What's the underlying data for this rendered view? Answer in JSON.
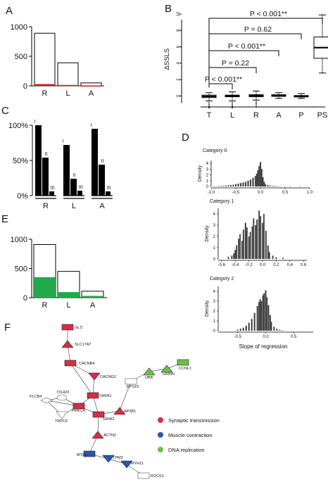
{
  "panels": {
    "A": {
      "label": "A",
      "chart_data": {
        "type": "bar",
        "categories": [
          "R",
          "L",
          "A"
        ],
        "series": [
          {
            "values": [
              890,
              390,
              50
            ]
          },
          {
            "values": [
              30,
              15,
              5
            ]
          }
        ],
        "ylim": [
          0,
          1000
        ],
        "yticks": [
          "0",
          "500",
          "1000"
        ],
        "colors": {
          "outline": "#000000",
          "fill": "#ffffff",
          "accent": "#cc2222"
        }
      }
    },
    "B": {
      "label": "B",
      "chart_data": {
        "type": "box",
        "categories": [
          "T",
          "L",
          "R",
          "A",
          "P",
          "PS"
        ],
        "ylabel": "ΔSSLS",
        "ylim": [
          -1,
          10
        ],
        "yticks": [
          "0",
          "2",
          "4",
          "6",
          "8",
          "10"
        ],
        "boxes": [
          {
            "name": "T",
            "q1": -0.2,
            "median": -0.05,
            "q3": 0.1,
            "whisker_low": -0.6,
            "whisker_high": 0.4
          },
          {
            "name": "L",
            "q1": -0.1,
            "median": 0.0,
            "q3": 0.1,
            "whisker_low": -0.6,
            "whisker_high": 0.5
          },
          {
            "name": "R",
            "q1": -0.1,
            "median": 0.05,
            "q3": 0.15,
            "whisker_low": -0.5,
            "whisker_high": 0.6
          },
          {
            "name": "A",
            "q1": -0.05,
            "median": 0.05,
            "q3": 0.15,
            "whisker_low": -0.3,
            "whisker_high": 0.4
          },
          {
            "name": "P",
            "q1": -0.1,
            "median": -0.05,
            "q3": 0.05,
            "whisker_low": -0.3,
            "whisker_high": 0.3
          },
          {
            "name": "PS",
            "q1": 4.6,
            "median": 5.9,
            "q3": 7.2,
            "whisker_low": 2.8,
            "whisker_high": 9.9
          }
        ],
        "annotations": [
          {
            "from": "T",
            "to": "PS",
            "text": "P < 0.001**"
          },
          {
            "from": "T",
            "to": "P",
            "text": "P = 0.62"
          },
          {
            "from": "T",
            "to": "A",
            "text": "P < 0.001**"
          },
          {
            "from": "T",
            "to": "R",
            "text": "P = 0.22"
          },
          {
            "from": "T",
            "to": "L",
            "text": "P < 0.001**"
          }
        ]
      }
    },
    "C": {
      "label": "C",
      "chart_data": {
        "type": "bar",
        "categories": [
          "R",
          "L",
          "A"
        ],
        "series": [
          {
            "name": "I",
            "values": [
              100,
              72,
              95
            ]
          },
          {
            "name": "II",
            "values": [
              54,
              24,
              44
            ]
          },
          {
            "name": "III",
            "values": [
              6,
              7,
              6
            ]
          }
        ],
        "ylim": [
          0,
          100
        ],
        "yticks": [
          "0%",
          "50%",
          "100%"
        ]
      }
    },
    "D": {
      "label": "D",
      "xlabel": "Slope of regression",
      "ylabel": "Density",
      "chart_data": [
        {
          "type": "histogram",
          "title": "Category 0",
          "x_ticks": [
            "-1.0",
            "-0.5",
            "0.0",
            "0.5",
            "1.0"
          ],
          "y_ticks": [
            "0",
            "1",
            "2",
            "3",
            "4"
          ],
          "xlim": [
            -1.0,
            1.0
          ],
          "ylim": [
            0,
            4.5
          ],
          "centers": [
            -0.95,
            -0.9,
            -0.85,
            -0.8,
            -0.75,
            -0.7,
            -0.65,
            -0.6,
            -0.55,
            -0.5,
            -0.45,
            -0.4,
            -0.35,
            -0.3,
            -0.25,
            -0.2,
            -0.15,
            -0.1,
            -0.075,
            -0.05,
            -0.025,
            0.0,
            0.025,
            0.05,
            0.075,
            0.1,
            0.15,
            0.2,
            0.25,
            0.3,
            0.35,
            0.4,
            0.5,
            0.6,
            0.8
          ],
          "values": [
            0.05,
            0.05,
            0.08,
            0.1,
            0.12,
            0.15,
            0.2,
            0.25,
            0.3,
            0.4,
            0.5,
            0.6,
            0.7,
            0.8,
            1.0,
            1.2,
            1.5,
            1.8,
            2.2,
            2.8,
            3.5,
            4.2,
            3.0,
            1.6,
            0.8,
            0.4,
            0.25,
            0.15,
            0.1,
            0.08,
            0.06,
            0.05,
            0.04,
            0.03,
            0.02
          ]
        },
        {
          "type": "histogram",
          "title": "Category 1",
          "x_ticks": [
            "-0.6",
            "-0.4",
            "-0.2",
            "0.0",
            "0.2",
            "0.4",
            "0.6"
          ],
          "y_ticks": [
            "0",
            "1",
            "2",
            "3",
            "4"
          ],
          "xlim": [
            -0.65,
            0.65
          ],
          "ylim": [
            0,
            4.5
          ],
          "centers": [
            -0.5,
            -0.45,
            -0.42,
            -0.4,
            -0.38,
            -0.35,
            -0.33,
            -0.3,
            -0.28,
            -0.25,
            -0.23,
            -0.2,
            -0.18,
            -0.15,
            -0.13,
            -0.1,
            -0.08,
            -0.05,
            -0.03,
            0.0,
            0.02,
            0.05,
            0.08,
            0.1,
            0.15,
            0.2,
            0.3
          ],
          "values": [
            0.2,
            0.3,
            0.5,
            0.8,
            1.2,
            1.8,
            2.2,
            1.6,
            2.6,
            3.2,
            2.8,
            2.0,
            2.4,
            2.9,
            3.6,
            3.0,
            3.5,
            4.3,
            3.8,
            3.2,
            4.0,
            2.5,
            1.2,
            0.6,
            0.3,
            0.15,
            0.1
          ]
        },
        {
          "type": "histogram",
          "title": "Category 2",
          "x_ticks": [
            "-0.5",
            "0.0",
            "0.5"
          ],
          "y_ticks": [
            "0",
            "1",
            "2",
            "3",
            "4"
          ],
          "xlim": [
            -0.85,
            0.85
          ],
          "ylim": [
            0,
            4.5
          ],
          "centers": [
            -0.5,
            -0.45,
            -0.4,
            -0.35,
            -0.3,
            -0.25,
            -0.2,
            -0.15,
            -0.12,
            -0.1,
            -0.08,
            -0.05,
            -0.03,
            0.0,
            0.02,
            0.05,
            0.08,
            0.1,
            0.15,
            0.2,
            0.25,
            0.3
          ],
          "values": [
            0.1,
            0.2,
            0.3,
            0.5,
            0.8,
            1.2,
            1.8,
            2.5,
            2.9,
            3.2,
            3.0,
            3.6,
            3.8,
            4.1,
            3.4,
            2.6,
            1.6,
            0.9,
            0.4,
            0.2,
            0.1,
            0.05
          ]
        }
      ]
    },
    "E": {
      "label": "E",
      "chart_data": {
        "type": "bar",
        "categories": [
          "R",
          "L",
          "A"
        ],
        "series": [
          {
            "values": [
              910,
              450,
              110
            ]
          },
          {
            "values": [
              350,
              95,
              30
            ]
          }
        ],
        "ylim": [
          0,
          1000
        ],
        "yticks": [
          "0",
          "500",
          "1000"
        ],
        "colors": {
          "outline": "#000000",
          "fill": "#ffffff",
          "accent": "#22a84a"
        }
      }
    },
    "F": {
      "label": "F",
      "legend": [
        {
          "label": "Synaptic transmission",
          "color": "#d32f45"
        },
        {
          "label": "Muscle contraction",
          "color": "#2b55b0"
        },
        {
          "label": "DNA replication",
          "color": "#6cbf4c"
        }
      ],
      "nodes": [
        {
          "id": "GLS",
          "label": "GLS",
          "category": "synaptic",
          "shape": "rect"
        },
        {
          "id": "SLC17A7",
          "label": "SLC17A7",
          "category": "synaptic",
          "shape": "tri-up"
        },
        {
          "id": "CACNB4",
          "label": "CACNB4",
          "category": "synaptic",
          "shape": "rect"
        },
        {
          "id": "CACNG2",
          "label": "CACNG2",
          "category": "synaptic",
          "shape": "tri-down"
        },
        {
          "id": "GRIA1",
          "label": "GRIA1",
          "category": "synaptic",
          "shape": "rect"
        },
        {
          "id": "GRIA2",
          "label": "GRIA2",
          "category": "synaptic",
          "shape": "rect"
        },
        {
          "id": "PRKCA",
          "label": "PRKCA",
          "category": "synaptic",
          "shape": "rect"
        },
        {
          "id": "AP2B1",
          "label": "AP2B1",
          "category": "synaptic",
          "shape": "tri-up"
        },
        {
          "id": "ACTN2",
          "label": "ACTN2",
          "category": "synaptic",
          "shape": "tri-up"
        },
        {
          "id": "731423",
          "label": "731423",
          "category": "none",
          "shape": "ellipse"
        },
        {
          "id": "PLCB4",
          "label": "PLCB4",
          "category": "none",
          "shape": "diamond"
        },
        {
          "id": "TRPC6",
          "label": "TRPC6",
          "category": "none",
          "shape": "tri-down"
        },
        {
          "id": "EPS15",
          "label": "EPS15",
          "category": "none",
          "shape": "rect"
        },
        {
          "id": "UBB",
          "label": "UBB",
          "category": "dna",
          "shape": "tri-up"
        },
        {
          "id": "GMNN",
          "label": "GMNN",
          "category": "dna",
          "shape": "tri-up"
        },
        {
          "id": "CCNL1",
          "label": "CCNL1",
          "category": "dna",
          "shape": "rect"
        },
        {
          "id": "MYL1",
          "label": "MYL1",
          "category": "muscle",
          "shape": "rect"
        },
        {
          "id": "TPM3",
          "label": "TPM3",
          "category": "muscle",
          "shape": "tri-down"
        },
        {
          "id": "MYH11",
          "label": "MYH11",
          "category": "muscle",
          "shape": "tri-down"
        },
        {
          "id": "ROCK1",
          "label": "ROCK1",
          "category": "none",
          "shape": "rect"
        }
      ],
      "edges": [
        [
          "GLS",
          "SLC17A7"
        ],
        [
          "SLC17A7",
          "CACNB4"
        ],
        [
          "CACNB4",
          "CACNG2"
        ],
        [
          "CACNG2",
          "GRIA1"
        ],
        [
          "GRIA1",
          "GRIA2"
        ],
        [
          "GRIA1",
          "PRKCA"
        ],
        [
          "PRKCA",
          "GRIA2"
        ],
        [
          "GRIA2",
          "AP2B1"
        ],
        [
          "AP2B1",
          "EPS15"
        ],
        [
          "EPS15",
          "UBB"
        ],
        [
          "UBB",
          "GMNN"
        ],
        [
          "GMNN",
          "CCNL1"
        ],
        [
          "GRIA2",
          "ACTN2"
        ],
        [
          "ACTN2",
          "MYL1"
        ],
        [
          "MYL1",
          "TPM3"
        ],
        [
          "TPM3",
          "MYH11"
        ],
        [
          "MYH11",
          "ROCK1"
        ],
        [
          "PRKCA",
          "731423"
        ],
        [
          "PRKCA",
          "PLCB4"
        ],
        [
          "PRKCA",
          "TRPC6"
        ],
        [
          "731423",
          "PLCB4"
        ],
        [
          "PLCB4",
          "TRPC6"
        ],
        [
          "GRIA1",
          "CACNB4"
        ]
      ]
    }
  }
}
